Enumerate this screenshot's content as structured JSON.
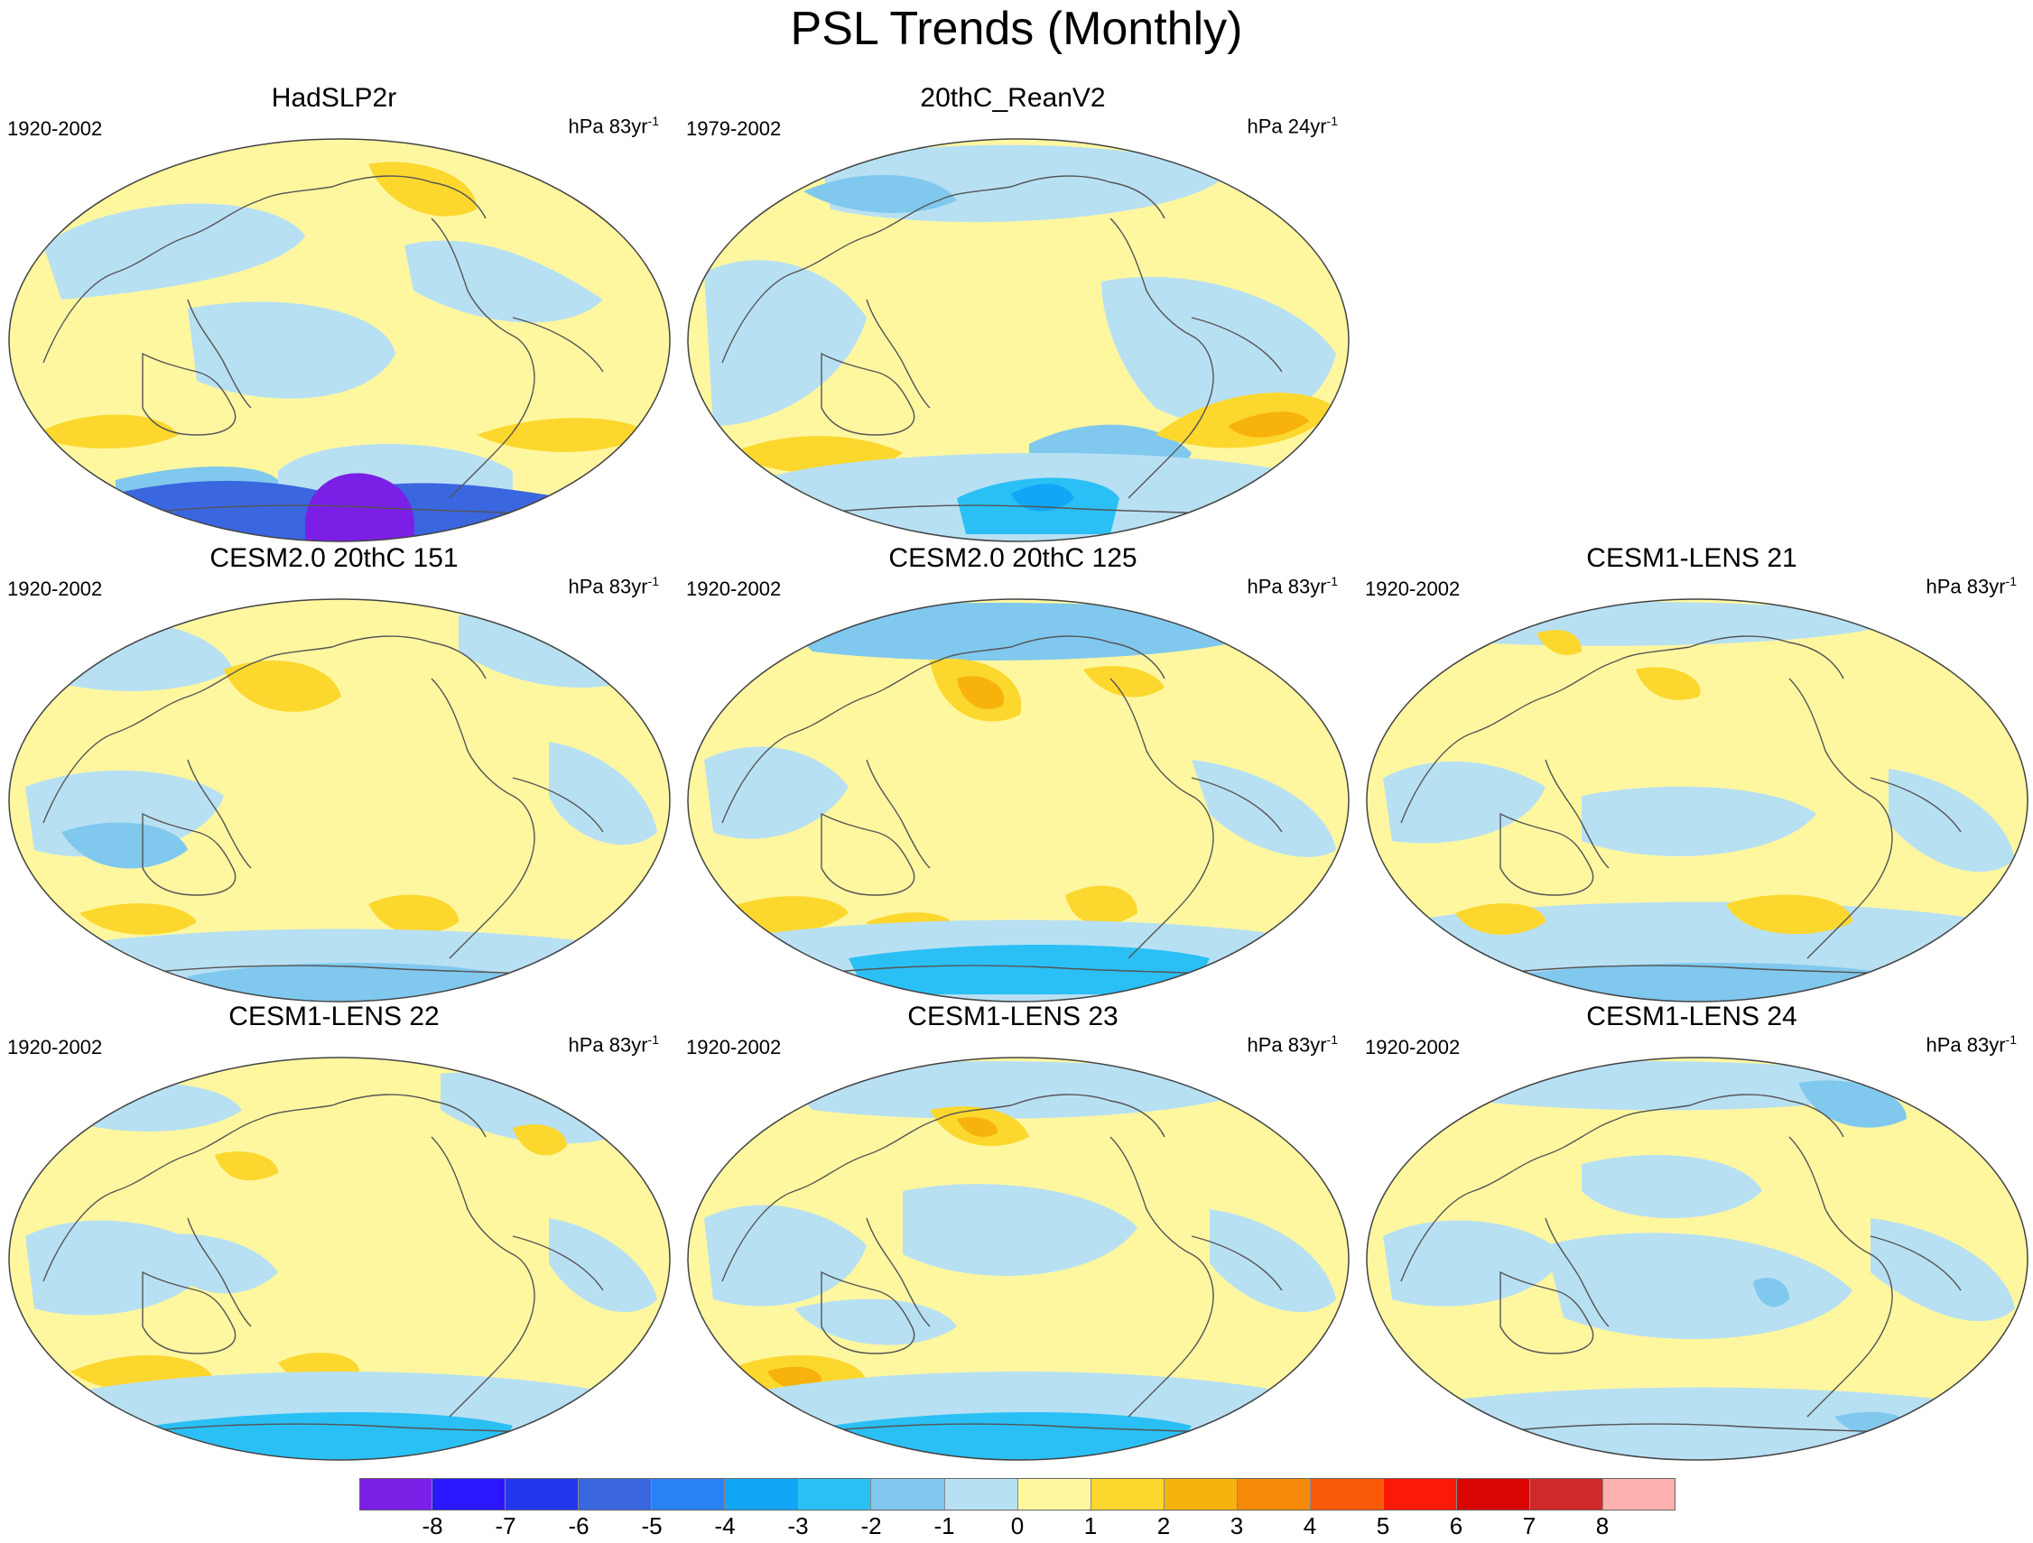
{
  "figure": {
    "title": "PSL Trends (Monthly)"
  },
  "panels": [
    {
      "title": "HadSLP2r",
      "period": "1920-2002",
      "units_prefix": "hPa 83yr",
      "units_exp": "-1"
    },
    {
      "title": "20thC_ReanV2",
      "period": "1979-2002",
      "units_prefix": "hPa 24yr",
      "units_exp": "-1"
    },
    {
      "title": "CESM2.0 20thC 151",
      "period": "1920-2002",
      "units_prefix": "hPa 83yr",
      "units_exp": "-1"
    },
    {
      "title": "CESM2.0 20thC 125",
      "period": "1920-2002",
      "units_prefix": "hPa 83yr",
      "units_exp": "-1"
    },
    {
      "title": "CESM1-LENS 21",
      "period": "1920-2002",
      "units_prefix": "hPa 83yr",
      "units_exp": "-1"
    },
    {
      "title": "CESM1-LENS 22",
      "period": "1920-2002",
      "units_prefix": "hPa 83yr",
      "units_exp": "-1"
    },
    {
      "title": "CESM1-LENS 23",
      "period": "1920-2002",
      "units_prefix": "hPa 83yr",
      "units_exp": "-1"
    },
    {
      "title": "CESM1-LENS 24",
      "period": "1920-2002",
      "units_prefix": "hPa 83yr",
      "units_exp": "-1"
    }
  ],
  "colorbar": {
    "colors": [
      "#7b1fe6",
      "#2a16ff",
      "#2236ee",
      "#3a66e0",
      "#2a82f4",
      "#12a6f7",
      "#2ac0f5",
      "#80c8ee",
      "#b8e0f3",
      "#fff7a0",
      "#fcd72e",
      "#f7b20c",
      "#f78a0a",
      "#f95a08",
      "#fa1a06",
      "#d90404",
      "#cf2a2a",
      "#fdb1b1"
    ],
    "labels": [
      "-8",
      "-7",
      "-6",
      "-5",
      "-4",
      "-3",
      "-2",
      "-1",
      "0",
      "1",
      "2",
      "3",
      "4",
      "5",
      "6",
      "7",
      "8"
    ]
  },
  "colors": {
    "ocean_base": "#fff7a0",
    "neg_light": "#b8e0f3",
    "neg_mid": "#80c8ee",
    "neg_strong": "#2ac0f5",
    "neg_stronger": "#12a6f7",
    "neg_deep": "#3a66e0",
    "neg_extreme": "#7b1fe6",
    "pos_light": "#fcd72e",
    "pos_mid": "#f7b20c",
    "pos_strong": "#f78a0a",
    "coastline": "#555555"
  }
}
